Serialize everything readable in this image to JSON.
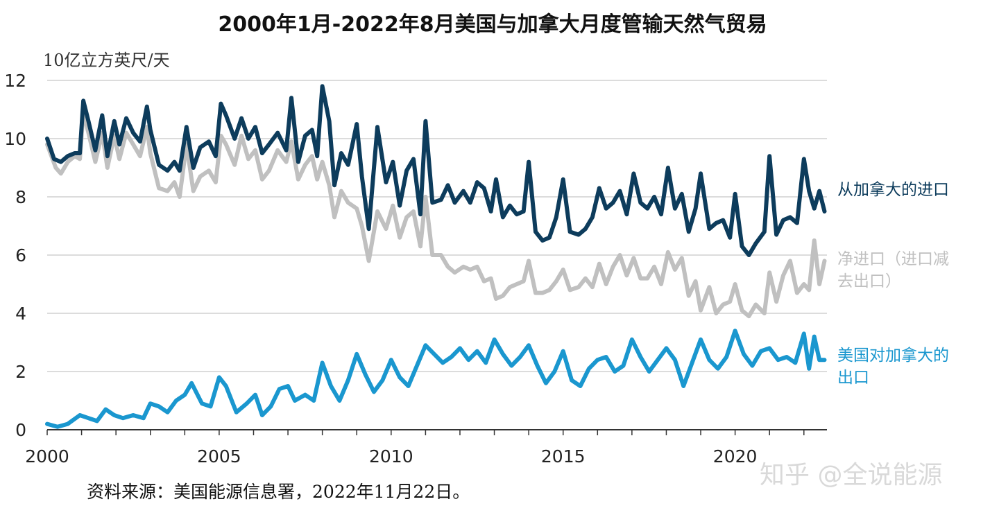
{
  "chart_data": {
    "type": "line",
    "title": "2000年1月-2022年8月美国与加拿大月度管输天然气贸易",
    "ylabel": "10亿立方英尺/天",
    "xlabel": "",
    "ylim": [
      0,
      12
    ],
    "xlim": [
      2000,
      2022.67
    ],
    "yticks": [
      "0",
      "2",
      "4",
      "6",
      "8",
      "10",
      "12"
    ],
    "xticks": [
      "2000",
      "2005",
      "2010",
      "2015",
      "2020"
    ],
    "grid": "horizontal",
    "source": "资料来源：美国能源信息署，2022年11月22日。",
    "watermark": "知乎 @全说能源",
    "series": [
      {
        "name": "净进口（进口减去出口）",
        "label_lines": [
          "净进口（进口减",
          "去出口）"
        ],
        "color": "#c0c0c0",
        "x": [
          2000.0,
          2000.25,
          2000.4,
          2000.6,
          2000.8,
          2000.95,
          2001.05,
          2001.2,
          2001.4,
          2001.6,
          2001.75,
          2001.95,
          2002.1,
          2002.3,
          2002.5,
          2002.7,
          2002.9,
          2003.0,
          2003.25,
          2003.5,
          2003.7,
          2003.85,
          2004.05,
          2004.25,
          2004.45,
          2004.7,
          2004.9,
          2005.05,
          2005.2,
          2005.45,
          2005.65,
          2005.85,
          2006.05,
          2006.25,
          2006.45,
          2006.7,
          2006.95,
          2007.1,
          2007.3,
          2007.5,
          2007.7,
          2007.85,
          2008.0,
          2008.2,
          2008.35,
          2008.55,
          2008.75,
          2009.0,
          2009.15,
          2009.35,
          2009.6,
          2009.85,
          2010.05,
          2010.25,
          2010.45,
          2010.65,
          2010.85,
          2011.0,
          2011.2,
          2011.45,
          2011.65,
          2011.85,
          2012.1,
          2012.3,
          2012.5,
          2012.7,
          2012.9,
          2013.05,
          2013.25,
          2013.45,
          2013.65,
          2013.85,
          2014.0,
          2014.2,
          2014.4,
          2014.6,
          2014.8,
          2015.0,
          2015.2,
          2015.45,
          2015.65,
          2015.85,
          2016.05,
          2016.25,
          2016.45,
          2016.65,
          2016.85,
          2017.05,
          2017.25,
          2017.45,
          2017.65,
          2017.85,
          2018.05,
          2018.25,
          2018.45,
          2018.65,
          2018.85,
          2019.0,
          2019.25,
          2019.45,
          2019.65,
          2019.85,
          2020.0,
          2020.2,
          2020.4,
          2020.6,
          2020.85,
          2021.0,
          2021.2,
          2021.4,
          2021.6,
          2021.8,
          2022.0,
          2022.15,
          2022.3,
          2022.45,
          2022.6
        ],
        "values": [
          9.8,
          9.0,
          8.8,
          9.2,
          9.4,
          9.3,
          10.9,
          10.2,
          9.2,
          10.2,
          9.0,
          10.1,
          9.3,
          10.2,
          9.8,
          9.4,
          10.4,
          9.5,
          8.3,
          8.2,
          8.5,
          8.0,
          9.8,
          8.2,
          8.7,
          8.9,
          8.5,
          10.1,
          9.8,
          9.1,
          10.1,
          9.3,
          9.6,
          8.6,
          8.9,
          9.6,
          9.2,
          9.9,
          8.6,
          9.1,
          9.4,
          8.6,
          9.2,
          8.4,
          7.3,
          8.2,
          7.8,
          7.6,
          7.0,
          5.8,
          7.5,
          6.9,
          7.7,
          6.6,
          7.3,
          7.5,
          6.3,
          8.0,
          6.0,
          6.0,
          5.6,
          5.4,
          5.6,
          5.5,
          5.6,
          5.1,
          5.2,
          4.5,
          4.6,
          4.9,
          5.0,
          5.1,
          5.8,
          4.7,
          4.7,
          4.8,
          5.1,
          5.5,
          4.8,
          4.9,
          5.2,
          4.9,
          5.7,
          5.0,
          5.6,
          6.0,
          5.3,
          5.9,
          5.2,
          5.2,
          5.6,
          5.0,
          6.1,
          5.5,
          5.9,
          4.6,
          5.1,
          4.1,
          4.9,
          4.0,
          4.3,
          4.4,
          5.0,
          4.1,
          3.9,
          4.3,
          4.0,
          5.4,
          4.4,
          5.3,
          5.8,
          4.7,
          5.0,
          4.8,
          6.5,
          5.0,
          5.8
        ]
      },
      {
        "name": "从加拿大的进口",
        "label_lines": [
          "从加拿大的进口"
        ],
        "color": "#0d3c5c",
        "x": [
          2000.0,
          2000.2,
          2000.4,
          2000.6,
          2000.8,
          2000.95,
          2001.05,
          2001.2,
          2001.4,
          2001.6,
          2001.75,
          2001.95,
          2002.1,
          2002.3,
          2002.5,
          2002.7,
          2002.9,
          2003.0,
          2003.25,
          2003.5,
          2003.7,
          2003.85,
          2004.05,
          2004.25,
          2004.45,
          2004.7,
          2004.9,
          2005.05,
          2005.2,
          2005.45,
          2005.65,
          2005.85,
          2006.05,
          2006.25,
          2006.45,
          2006.7,
          2006.95,
          2007.1,
          2007.3,
          2007.5,
          2007.7,
          2007.85,
          2008.0,
          2008.2,
          2008.35,
          2008.55,
          2008.75,
          2009.0,
          2009.15,
          2009.35,
          2009.6,
          2009.85,
          2010.05,
          2010.25,
          2010.45,
          2010.65,
          2010.85,
          2011.0,
          2011.2,
          2011.45,
          2011.65,
          2011.85,
          2012.1,
          2012.3,
          2012.5,
          2012.7,
          2012.9,
          2013.05,
          2013.25,
          2013.45,
          2013.65,
          2013.85,
          2014.0,
          2014.2,
          2014.4,
          2014.6,
          2014.8,
          2015.0,
          2015.2,
          2015.45,
          2015.65,
          2015.85,
          2016.05,
          2016.25,
          2016.45,
          2016.65,
          2016.85,
          2017.05,
          2017.25,
          2017.45,
          2017.65,
          2017.85,
          2018.05,
          2018.25,
          2018.45,
          2018.65,
          2018.85,
          2019.0,
          2019.25,
          2019.45,
          2019.65,
          2019.85,
          2020.0,
          2020.2,
          2020.4,
          2020.6,
          2020.85,
          2021.0,
          2021.2,
          2021.4,
          2021.6,
          2021.8,
          2022.0,
          2022.15,
          2022.3,
          2022.45,
          2022.6
        ],
        "values": [
          10.0,
          9.3,
          9.2,
          9.4,
          9.5,
          9.5,
          11.3,
          10.6,
          9.6,
          10.8,
          9.4,
          10.6,
          9.8,
          10.7,
          10.2,
          9.9,
          11.1,
          10.3,
          9.1,
          8.9,
          9.2,
          8.9,
          10.4,
          9.0,
          9.7,
          9.9,
          9.4,
          11.2,
          10.8,
          10.0,
          10.7,
          10.0,
          10.4,
          9.5,
          9.8,
          10.2,
          9.6,
          11.4,
          9.2,
          10.1,
          10.3,
          9.4,
          11.8,
          10.6,
          8.4,
          9.5,
          9.1,
          10.5,
          8.7,
          6.9,
          10.4,
          8.5,
          9.2,
          7.7,
          8.9,
          9.3,
          7.4,
          10.6,
          7.8,
          7.9,
          8.4,
          7.8,
          8.2,
          7.8,
          8.5,
          8.3,
          7.5,
          8.6,
          7.3,
          7.7,
          7.4,
          7.5,
          9.2,
          6.8,
          6.5,
          6.6,
          7.3,
          8.6,
          6.8,
          6.7,
          6.9,
          7.3,
          8.3,
          7.6,
          7.8,
          8.2,
          7.4,
          8.8,
          7.8,
          7.6,
          8.0,
          7.4,
          9.0,
          7.6,
          8.1,
          6.8,
          7.6,
          8.8,
          6.9,
          7.1,
          7.2,
          6.6,
          8.1,
          6.3,
          6.0,
          6.4,
          6.8,
          9.4,
          6.7,
          7.2,
          7.3,
          7.1,
          9.3,
          8.2,
          7.6,
          8.2,
          7.5
        ]
      },
      {
        "name": "美国对加拿大的出口",
        "label_lines": [
          "美国对加拿大的",
          "出口"
        ],
        "color": "#1a97cf",
        "x": [
          2000.0,
          2000.3,
          2000.6,
          2000.95,
          2001.2,
          2001.45,
          2001.7,
          2001.95,
          2002.2,
          2002.5,
          2002.8,
          2003.0,
          2003.25,
          2003.5,
          2003.75,
          2004.0,
          2004.2,
          2004.5,
          2004.75,
          2005.0,
          2005.2,
          2005.5,
          2005.8,
          2006.05,
          2006.25,
          2006.5,
          2006.75,
          2007.0,
          2007.2,
          2007.5,
          2007.75,
          2008.0,
          2008.25,
          2008.5,
          2008.75,
          2009.0,
          2009.25,
          2009.5,
          2009.75,
          2010.0,
          2010.25,
          2010.5,
          2010.75,
          2011.0,
          2011.25,
          2011.5,
          2011.75,
          2012.0,
          2012.25,
          2012.5,
          2012.75,
          2013.0,
          2013.25,
          2013.5,
          2013.75,
          2014.0,
          2014.25,
          2014.5,
          2014.75,
          2015.0,
          2015.25,
          2015.5,
          2015.75,
          2016.0,
          2016.25,
          2016.5,
          2016.75,
          2017.0,
          2017.25,
          2017.5,
          2017.75,
          2018.0,
          2018.25,
          2018.5,
          2018.75,
          2019.0,
          2019.25,
          2019.5,
          2019.75,
          2020.0,
          2020.25,
          2020.5,
          2020.75,
          2021.0,
          2021.25,
          2021.5,
          2021.75,
          2022.0,
          2022.15,
          2022.3,
          2022.45,
          2022.6
        ],
        "values": [
          0.2,
          0.1,
          0.2,
          0.5,
          0.4,
          0.3,
          0.7,
          0.5,
          0.4,
          0.5,
          0.4,
          0.9,
          0.8,
          0.6,
          1.0,
          1.2,
          1.6,
          0.9,
          0.8,
          1.8,
          1.5,
          0.6,
          0.9,
          1.2,
          0.5,
          0.8,
          1.4,
          1.5,
          1.0,
          1.2,
          1.0,
          2.3,
          1.5,
          1.0,
          1.7,
          2.6,
          1.9,
          1.3,
          1.7,
          2.4,
          1.8,
          1.5,
          2.2,
          2.9,
          2.6,
          2.3,
          2.5,
          2.8,
          2.4,
          2.7,
          2.3,
          3.1,
          2.6,
          2.2,
          2.5,
          2.9,
          2.2,
          1.6,
          2.0,
          2.7,
          1.7,
          1.5,
          2.1,
          2.4,
          2.5,
          2.0,
          2.2,
          3.1,
          2.5,
          2.0,
          2.4,
          2.8,
          2.4,
          1.5,
          2.3,
          3.1,
          2.4,
          2.1,
          2.5,
          3.4,
          2.6,
          2.2,
          2.7,
          2.8,
          2.4,
          2.5,
          2.3,
          3.3,
          2.1,
          3.2,
          2.4,
          2.4
        ]
      }
    ]
  }
}
